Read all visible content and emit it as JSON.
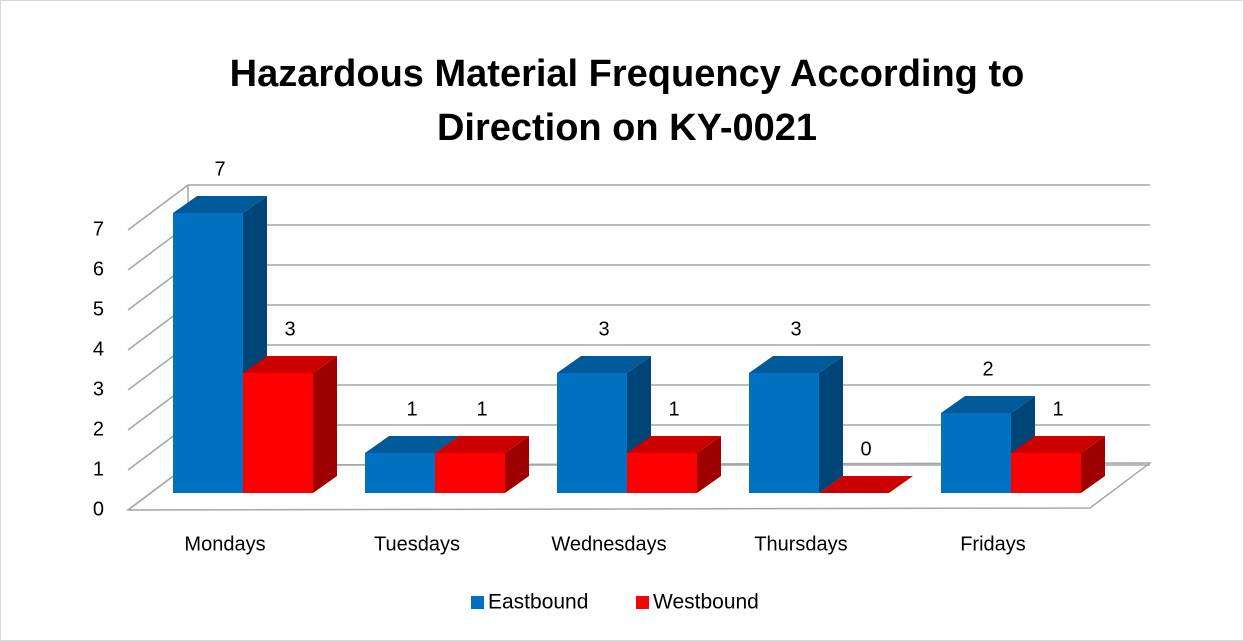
{
  "chart_data": {
    "type": "bar3d",
    "title": [
      "Hazardous Material Frequency According to",
      "Direction on KY-0021"
    ],
    "categories": [
      "Mondays",
      "Tuesdays",
      "Wednesdays",
      "Thursdays",
      "Fridays"
    ],
    "series": [
      {
        "name": "Eastbound",
        "color": "#0070c0",
        "values": [
          7,
          1,
          3,
          3,
          2
        ]
      },
      {
        "name": "Westbound",
        "color": "#ff0000",
        "values": [
          3,
          1,
          1,
          0,
          1
        ]
      }
    ],
    "ylim": [
      0,
      7
    ],
    "yticks": [
      0,
      1,
      2,
      3,
      4,
      5,
      6,
      7
    ],
    "grid": true,
    "legend": "bottom"
  }
}
